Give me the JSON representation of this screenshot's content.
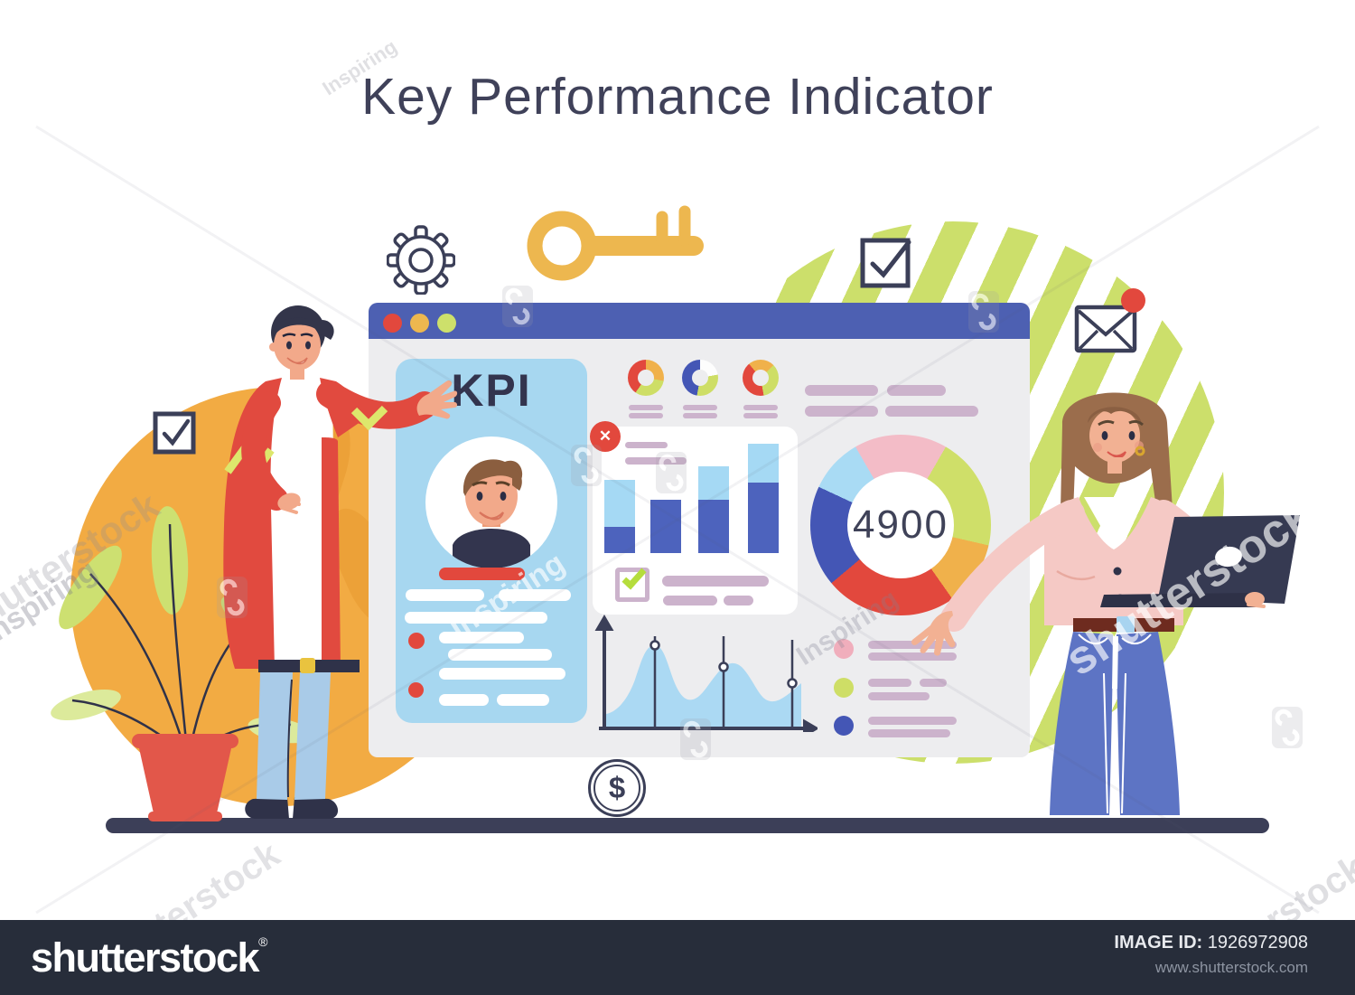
{
  "title": "Key Performance Indicator",
  "watermark": {
    "brand": "shutterstock",
    "contributor": "Inspiring"
  },
  "dashboard": {
    "kpi_card": {
      "label": "KPI"
    },
    "close_glyph": "✕",
    "gauge": {
      "value": "4900",
      "segments": [
        [
          "#f3bcc7",
          30
        ],
        [
          "#cfdf69",
          73
        ],
        [
          "#f0b14b",
          42
        ],
        [
          "#e2483d",
          85
        ],
        [
          "#4456b5",
          65
        ],
        [
          "#a9dbf4",
          35
        ],
        [
          "#f3bcc7",
          30
        ]
      ]
    },
    "mini_donuts": [
      {
        "segments": [
          [
            "#f0b14b",
            100
          ],
          [
            "#cede66",
            115
          ],
          [
            "#e2483d",
            145
          ]
        ]
      },
      {
        "segments": [
          [
            "#fdfdfd",
            80
          ],
          [
            "#cede66",
            110
          ],
          [
            "#4456b5",
            170
          ]
        ]
      },
      {
        "segments": [
          [
            "#f0b14b",
            45
          ],
          [
            "#cede66",
            125
          ],
          [
            "#e2483d",
            150
          ],
          [
            "#f0b14b",
            40
          ]
        ]
      }
    ],
    "bar_chart": {
      "bars": [
        {
          "light": 52,
          "dark": 29
        },
        {
          "light": 0,
          "dark": 59
        },
        {
          "light": 37,
          "dark": 59
        },
        {
          "light": 43,
          "dark": 78
        }
      ]
    },
    "legend_bullets": [
      "#f0aebc",
      "#cede66",
      "#4456b5"
    ]
  },
  "icons": {
    "dollar_glyph": "$",
    "names": [
      "gear-icon",
      "key-icon",
      "checkbox-checked-icon",
      "mail-icon",
      "notification-dot",
      "dollar-coin-icon",
      "close-badge-icon",
      "window-dot"
    ]
  },
  "footer": {
    "logo": "shutterstock",
    "reg": "®",
    "image_id_label": "IMAGE ID:",
    "image_id": "1926972908",
    "website": "www.shutterstock.com"
  },
  "colors": {
    "navy": "#3b3f58",
    "winBar": "#4d60b2",
    "winBg": "#ededef",
    "cardBlue": "#a7d7f0",
    "red": "#e2483d",
    "gold": "#edb74f",
    "green": "#cde06b",
    "stripeGreen": "#ccdf6b",
    "yellow": "#f2ab43",
    "mauve": "#ccb3cc",
    "barBlue": "#4d63bd",
    "lightBlue": "#a5d9f4",
    "ground": "#3c3f58"
  }
}
